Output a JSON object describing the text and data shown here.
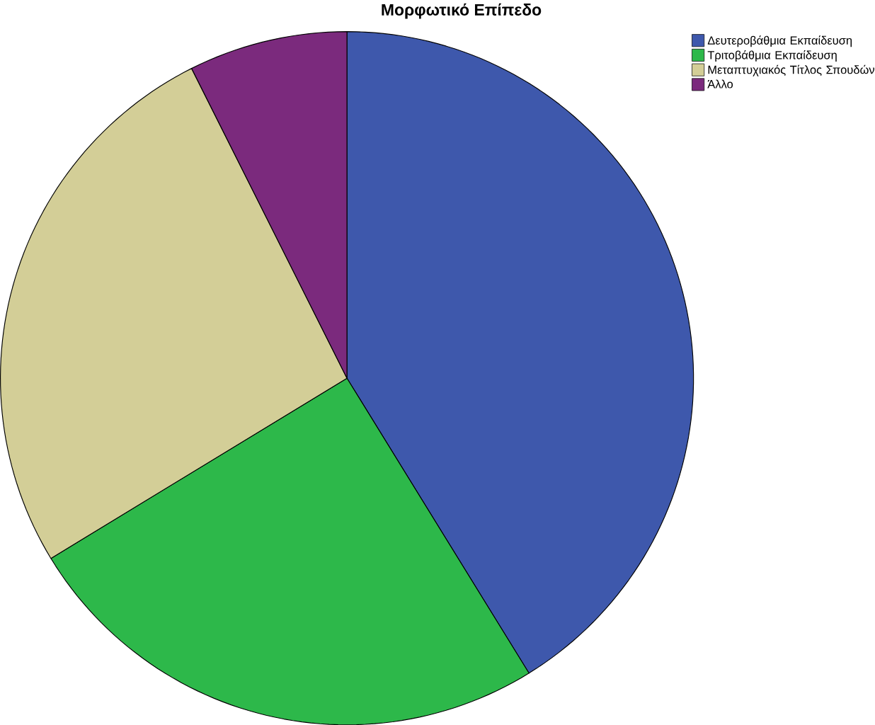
{
  "chart_data": {
    "type": "pie",
    "title": "Μορφωτικό Επίπεδο",
    "categories": [
      "Δευτεροβάθμια Εκπαίδευση",
      "Τριτοβάθμια Εκπαίδευση",
      "Μεταπτυχιακός Τίτλος Σπουδών",
      "Άλλο"
    ],
    "values": [
      41.2,
      25.1,
      26.3,
      7.4
    ],
    "colors": [
      "#3e58ac",
      "#2db84a",
      "#d3ce97",
      "#7b2a7d"
    ],
    "legend": "top right"
  }
}
